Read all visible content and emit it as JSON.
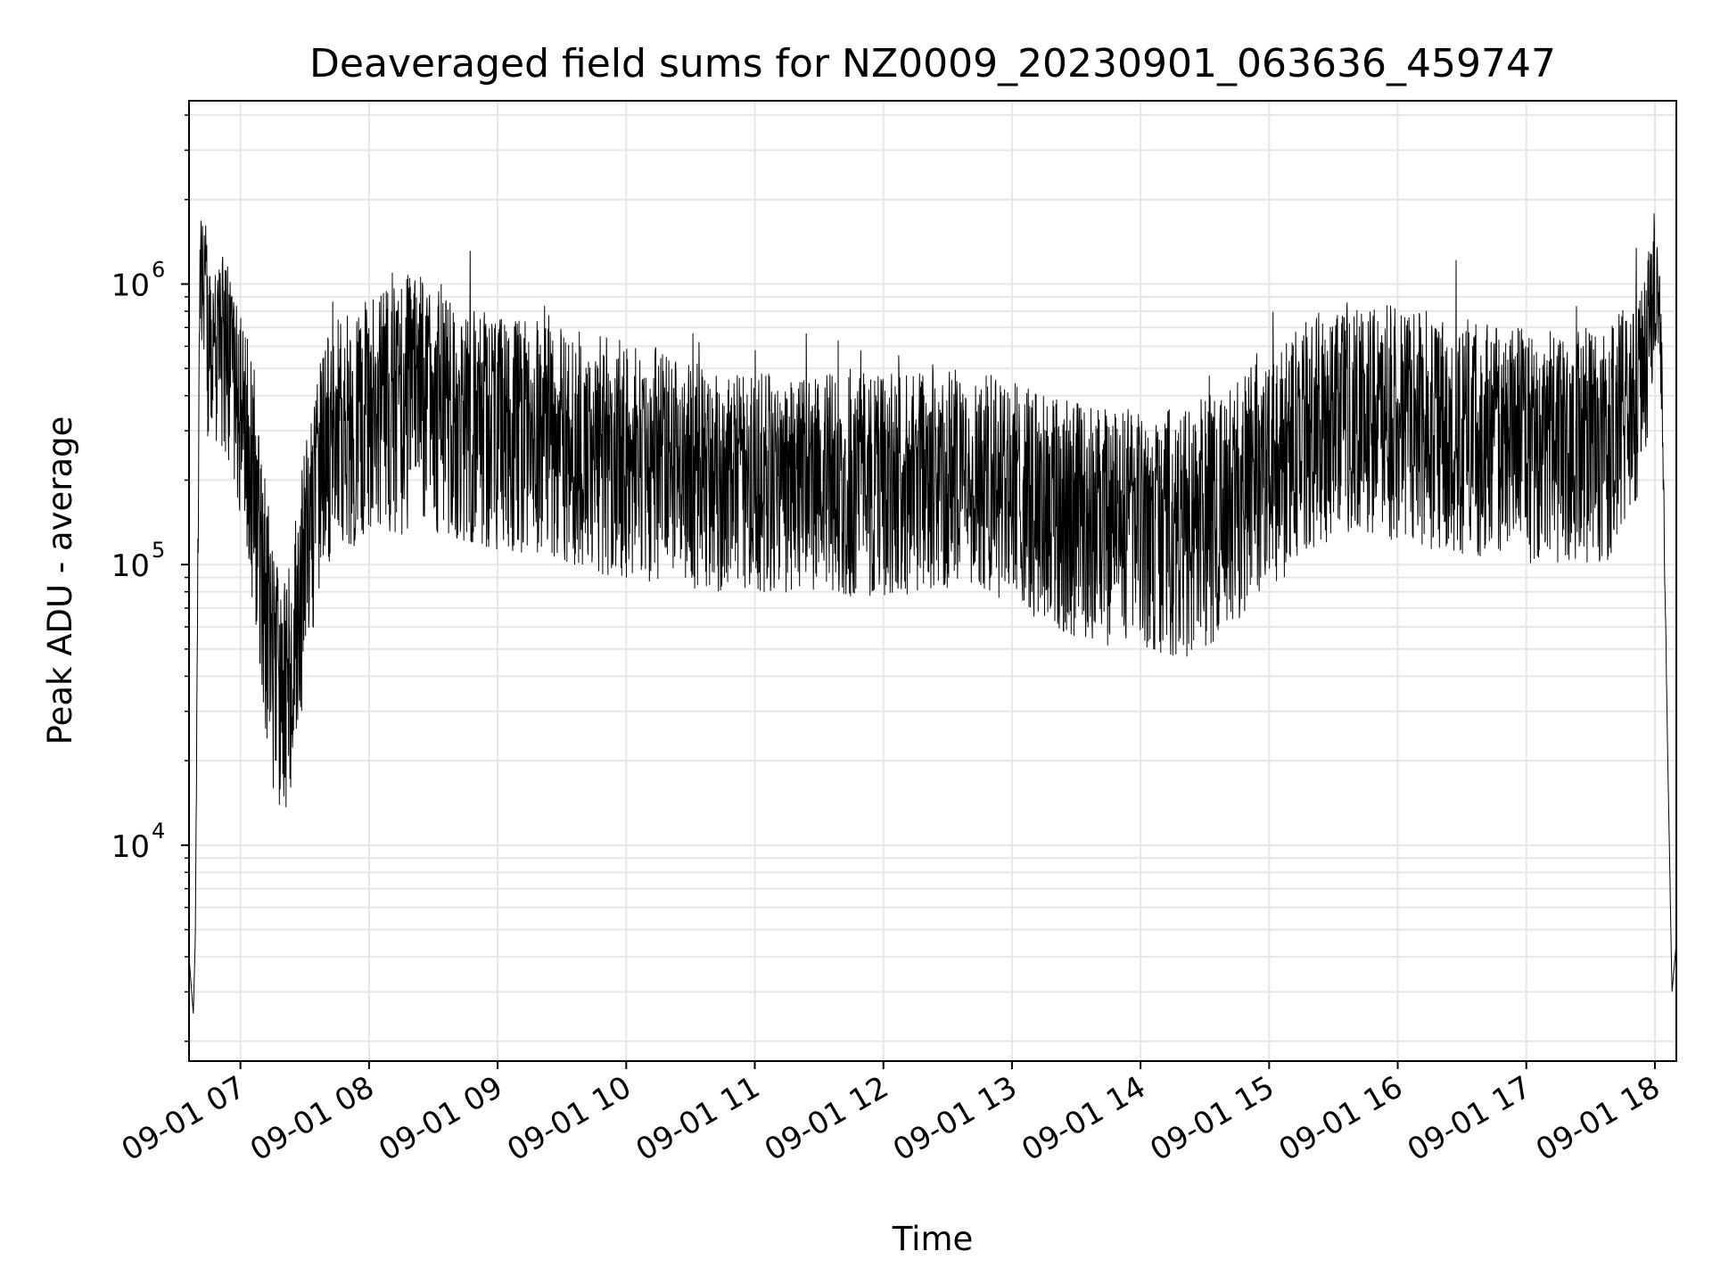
{
  "chart_data": {
    "type": "line",
    "title": "Deaveraged field sums for NZ0009_20230901_063636_459747",
    "xlabel": "Time",
    "ylabel": "Peak ADU - average",
    "yscale": "log",
    "ylim": [
      1700,
      4500000
    ],
    "xlim": [
      "2023-09-01 06:36",
      "2023-09-01 18:10"
    ],
    "grid": true,
    "line_color": "#000000",
    "grid_color": "#e6e6e6",
    "x_ticks": [
      {
        "value": "2023-09-01 07:00",
        "label": "09-01 07"
      },
      {
        "value": "2023-09-01 08:00",
        "label": "09-01 08"
      },
      {
        "value": "2023-09-01 09:00",
        "label": "09-01 09"
      },
      {
        "value": "2023-09-01 10:00",
        "label": "09-01 10"
      },
      {
        "value": "2023-09-01 11:00",
        "label": "09-01 11"
      },
      {
        "value": "2023-09-01 12:00",
        "label": "09-01 12"
      },
      {
        "value": "2023-09-01 13:00",
        "label": "09-01 13"
      },
      {
        "value": "2023-09-01 14:00",
        "label": "09-01 14"
      },
      {
        "value": "2023-09-01 15:00",
        "label": "09-01 15"
      },
      {
        "value": "2023-09-01 16:00",
        "label": "09-01 16"
      },
      {
        "value": "2023-09-01 17:00",
        "label": "09-01 17"
      },
      {
        "value": "2023-09-01 18:00",
        "label": "09-01 18"
      }
    ],
    "y_ticks": [
      {
        "value": 10000,
        "base": "10",
        "exp": "4"
      },
      {
        "value": 100000,
        "base": "10",
        "exp": "5"
      },
      {
        "value": 1000000,
        "base": "10",
        "exp": "6"
      }
    ],
    "series": [
      {
        "x": [
          "2023-09-01 06:36",
          "2023-09-01 06:38",
          "2023-09-01 06:39",
          "2023-09-01 06:41",
          "2023-09-01 06:42",
          "2023-09-01 06:44",
          "2023-09-01 06:46",
          "2023-09-01 06:50",
          "2023-09-01 06:55",
          "2023-09-01 07:00",
          "2023-09-01 07:05",
          "2023-09-01 07:10",
          "2023-09-01 07:15",
          "2023-09-01 07:20",
          "2023-09-01 07:25",
          "2023-09-01 07:30",
          "2023-09-01 07:35",
          "2023-09-01 07:40",
          "2023-09-01 07:45",
          "2023-09-01 07:50",
          "2023-09-01 08:00",
          "2023-09-01 08:10",
          "2023-09-01 08:20",
          "2023-09-01 08:30",
          "2023-09-01 08:35",
          "2023-09-01 08:40",
          "2023-09-01 09:00",
          "2023-09-01 09:20",
          "2023-09-01 09:40",
          "2023-09-01 10:00",
          "2023-09-01 10:20",
          "2023-09-01 10:40",
          "2023-09-01 10:50",
          "2023-09-01 11:00",
          "2023-09-01 11:20",
          "2023-09-01 11:40",
          "2023-09-01 12:00",
          "2023-09-01 12:20",
          "2023-09-01 12:40",
          "2023-09-01 13:00",
          "2023-09-01 13:20",
          "2023-09-01 13:40",
          "2023-09-01 14:00",
          "2023-09-01 14:20",
          "2023-09-01 14:40",
          "2023-09-01 15:00",
          "2023-09-01 15:20",
          "2023-09-01 15:40",
          "2023-09-01 16:00",
          "2023-09-01 16:20",
          "2023-09-01 16:40",
          "2023-09-01 17:00",
          "2023-09-01 17:20",
          "2023-09-01 17:40",
          "2023-09-01 17:55",
          "2023-09-01 18:00",
          "2023-09-01 18:03",
          "2023-09-01 18:06",
          "2023-09-01 18:08",
          "2023-09-01 18:10"
        ],
        "y": [
          4000,
          2500,
          5000,
          1100000,
          1500000,
          900000,
          700000,
          800000,
          600000,
          400000,
          250000,
          120000,
          60000,
          40000,
          60000,
          120000,
          200000,
          300000,
          350000,
          350000,
          400000,
          450000,
          500000,
          450000,
          400000,
          380000,
          350000,
          330000,
          300000,
          280000,
          260000,
          250000,
          250000,
          250000,
          240000,
          240000,
          240000,
          250000,
          250000,
          230000,
          200000,
          180000,
          180000,
          160000,
          200000,
          250000,
          350000,
          420000,
          380000,
          350000,
          330000,
          320000,
          310000,
          330000,
          500000,
          1200000,
          600000,
          20000,
          3000,
          4500
        ],
        "spread_min": [
          0,
          0,
          0,
          0.35,
          0.5,
          0.5,
          0.45,
          0.45,
          0.5,
          0.45,
          0.5,
          0.55,
          0.6,
          0.6,
          0.55,
          0.5,
          0.5,
          0.5,
          0.5,
          0.5,
          0.5,
          0.55,
          0.6,
          0.55,
          0.5,
          0.5,
          0.5,
          0.5,
          0.5,
          0.5,
          0.5,
          0.5,
          0.5,
          0.5,
          0.5,
          0.5,
          0.5,
          0.5,
          0.5,
          0.5,
          0.55,
          0.55,
          0.55,
          0.55,
          0.55,
          0.5,
          0.5,
          0.5,
          0.5,
          0.5,
          0.5,
          0.5,
          0.5,
          0.5,
          0.4,
          0.3,
          0.2,
          0,
          0,
          0
        ],
        "spread_max": [
          0,
          0,
          0,
          0.15,
          0.15,
          0.2,
          0.2,
          0.25,
          0.3,
          0.35,
          0.35,
          0.35,
          0.35,
          0.35,
          0.35,
          0.35,
          0.35,
          0.35,
          0.35,
          0.35,
          0.35,
          0.35,
          0.35,
          0.35,
          0.35,
          0.35,
          0.35,
          0.35,
          0.35,
          0.35,
          0.35,
          0.3,
          0.3,
          0.3,
          0.3,
          0.3,
          0.3,
          0.3,
          0.3,
          0.3,
          0.3,
          0.3,
          0.3,
          0.35,
          0.35,
          0.35,
          0.35,
          0.35,
          0.35,
          0.35,
          0.35,
          0.35,
          0.35,
          0.35,
          0.3,
          0.25,
          0.15,
          0,
          0,
          0
        ]
      }
    ]
  }
}
